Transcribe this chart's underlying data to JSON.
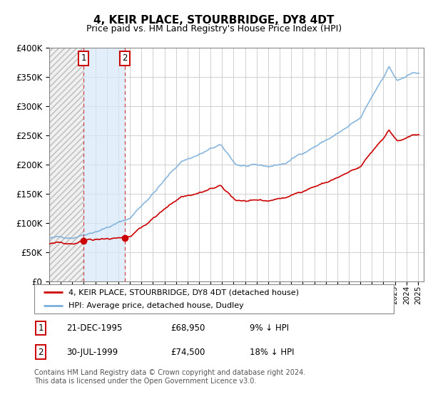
{
  "title": "4, KEIR PLACE, STOURBRIDGE, DY8 4DT",
  "subtitle": "Price paid vs. HM Land Registry's House Price Index (HPI)",
  "ylim": [
    0,
    400000
  ],
  "yticks": [
    0,
    50000,
    100000,
    150000,
    200000,
    250000,
    300000,
    350000,
    400000
  ],
  "hpi_color": "#7aafdb",
  "price_color": "#cc0000",
  "annotation1_date": "21-DEC-1995",
  "annotation1_price": 68950,
  "annotation1_text": "9% ↓ HPI",
  "annotation2_date": "30-JUL-1999",
  "annotation2_price": 74500,
  "annotation2_text": "18% ↓ HPI",
  "legend_line1": "4, KEIR PLACE, STOURBRIDGE, DY8 4DT (detached house)",
  "legend_line2": "HPI: Average price, detached house, Dudley",
  "footer": "Contains HM Land Registry data © Crown copyright and database right 2024.\nThis data is licensed under the Open Government Licence v3.0.",
  "sale1_year": 1995.97,
  "sale2_year": 1999.58,
  "sale1_price": 68950,
  "sale2_price": 74500,
  "xstart": 1993.0,
  "xend": 2025.5
}
